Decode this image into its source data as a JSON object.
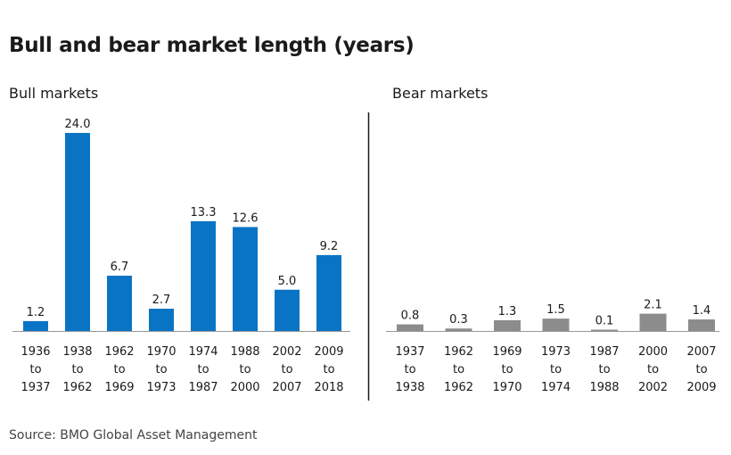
{
  "title": "Bull and bear market length (years)",
  "source": "Source: BMO Global Asset Management",
  "colors": {
    "bull": "#0a74c4",
    "bear": "#8c8c8c",
    "axis": "#999999",
    "divider": "#1a1a1a"
  },
  "chart_data": [
    {
      "type": "bar",
      "title": "Bull markets",
      "categories": [
        [
          "1936",
          "to",
          "1937"
        ],
        [
          "1938",
          "to",
          "1962"
        ],
        [
          "1962",
          "to",
          "1969"
        ],
        [
          "1970",
          "to",
          "1973"
        ],
        [
          "1974",
          "to",
          "1987"
        ],
        [
          "1988",
          "to",
          "2000"
        ],
        [
          "2002",
          "to",
          "2007"
        ],
        [
          "2009",
          "to",
          "2018"
        ]
      ],
      "values": [
        1.2,
        24.0,
        6.7,
        2.7,
        13.3,
        12.6,
        5.0,
        9.2
      ],
      "value_labels": [
        "1.2",
        "24.0",
        "6.7",
        "2.7",
        "13.3",
        "12.6",
        "5.0",
        "9.2"
      ],
      "ylim": [
        0,
        24.0
      ],
      "grid": false,
      "xlabel": "",
      "ylabel": ""
    },
    {
      "type": "bar",
      "title": "Bear markets",
      "categories": [
        [
          "1937",
          "to",
          "1938"
        ],
        [
          "1962",
          "to",
          "1962"
        ],
        [
          "1969",
          "to",
          "1970"
        ],
        [
          "1973",
          "to",
          "1974"
        ],
        [
          "1987",
          "to",
          "1988"
        ],
        [
          "2000",
          "to",
          "2002"
        ],
        [
          "2007",
          "to",
          "2009"
        ]
      ],
      "values": [
        0.8,
        0.3,
        1.3,
        1.5,
        0.1,
        2.1,
        1.4
      ],
      "value_labels": [
        "0.8",
        "0.3",
        "1.3",
        "1.5",
        "0.1",
        "2.1",
        "1.4"
      ],
      "ylim": [
        0,
        24.0
      ],
      "grid": false,
      "xlabel": "",
      "ylabel": ""
    }
  ]
}
